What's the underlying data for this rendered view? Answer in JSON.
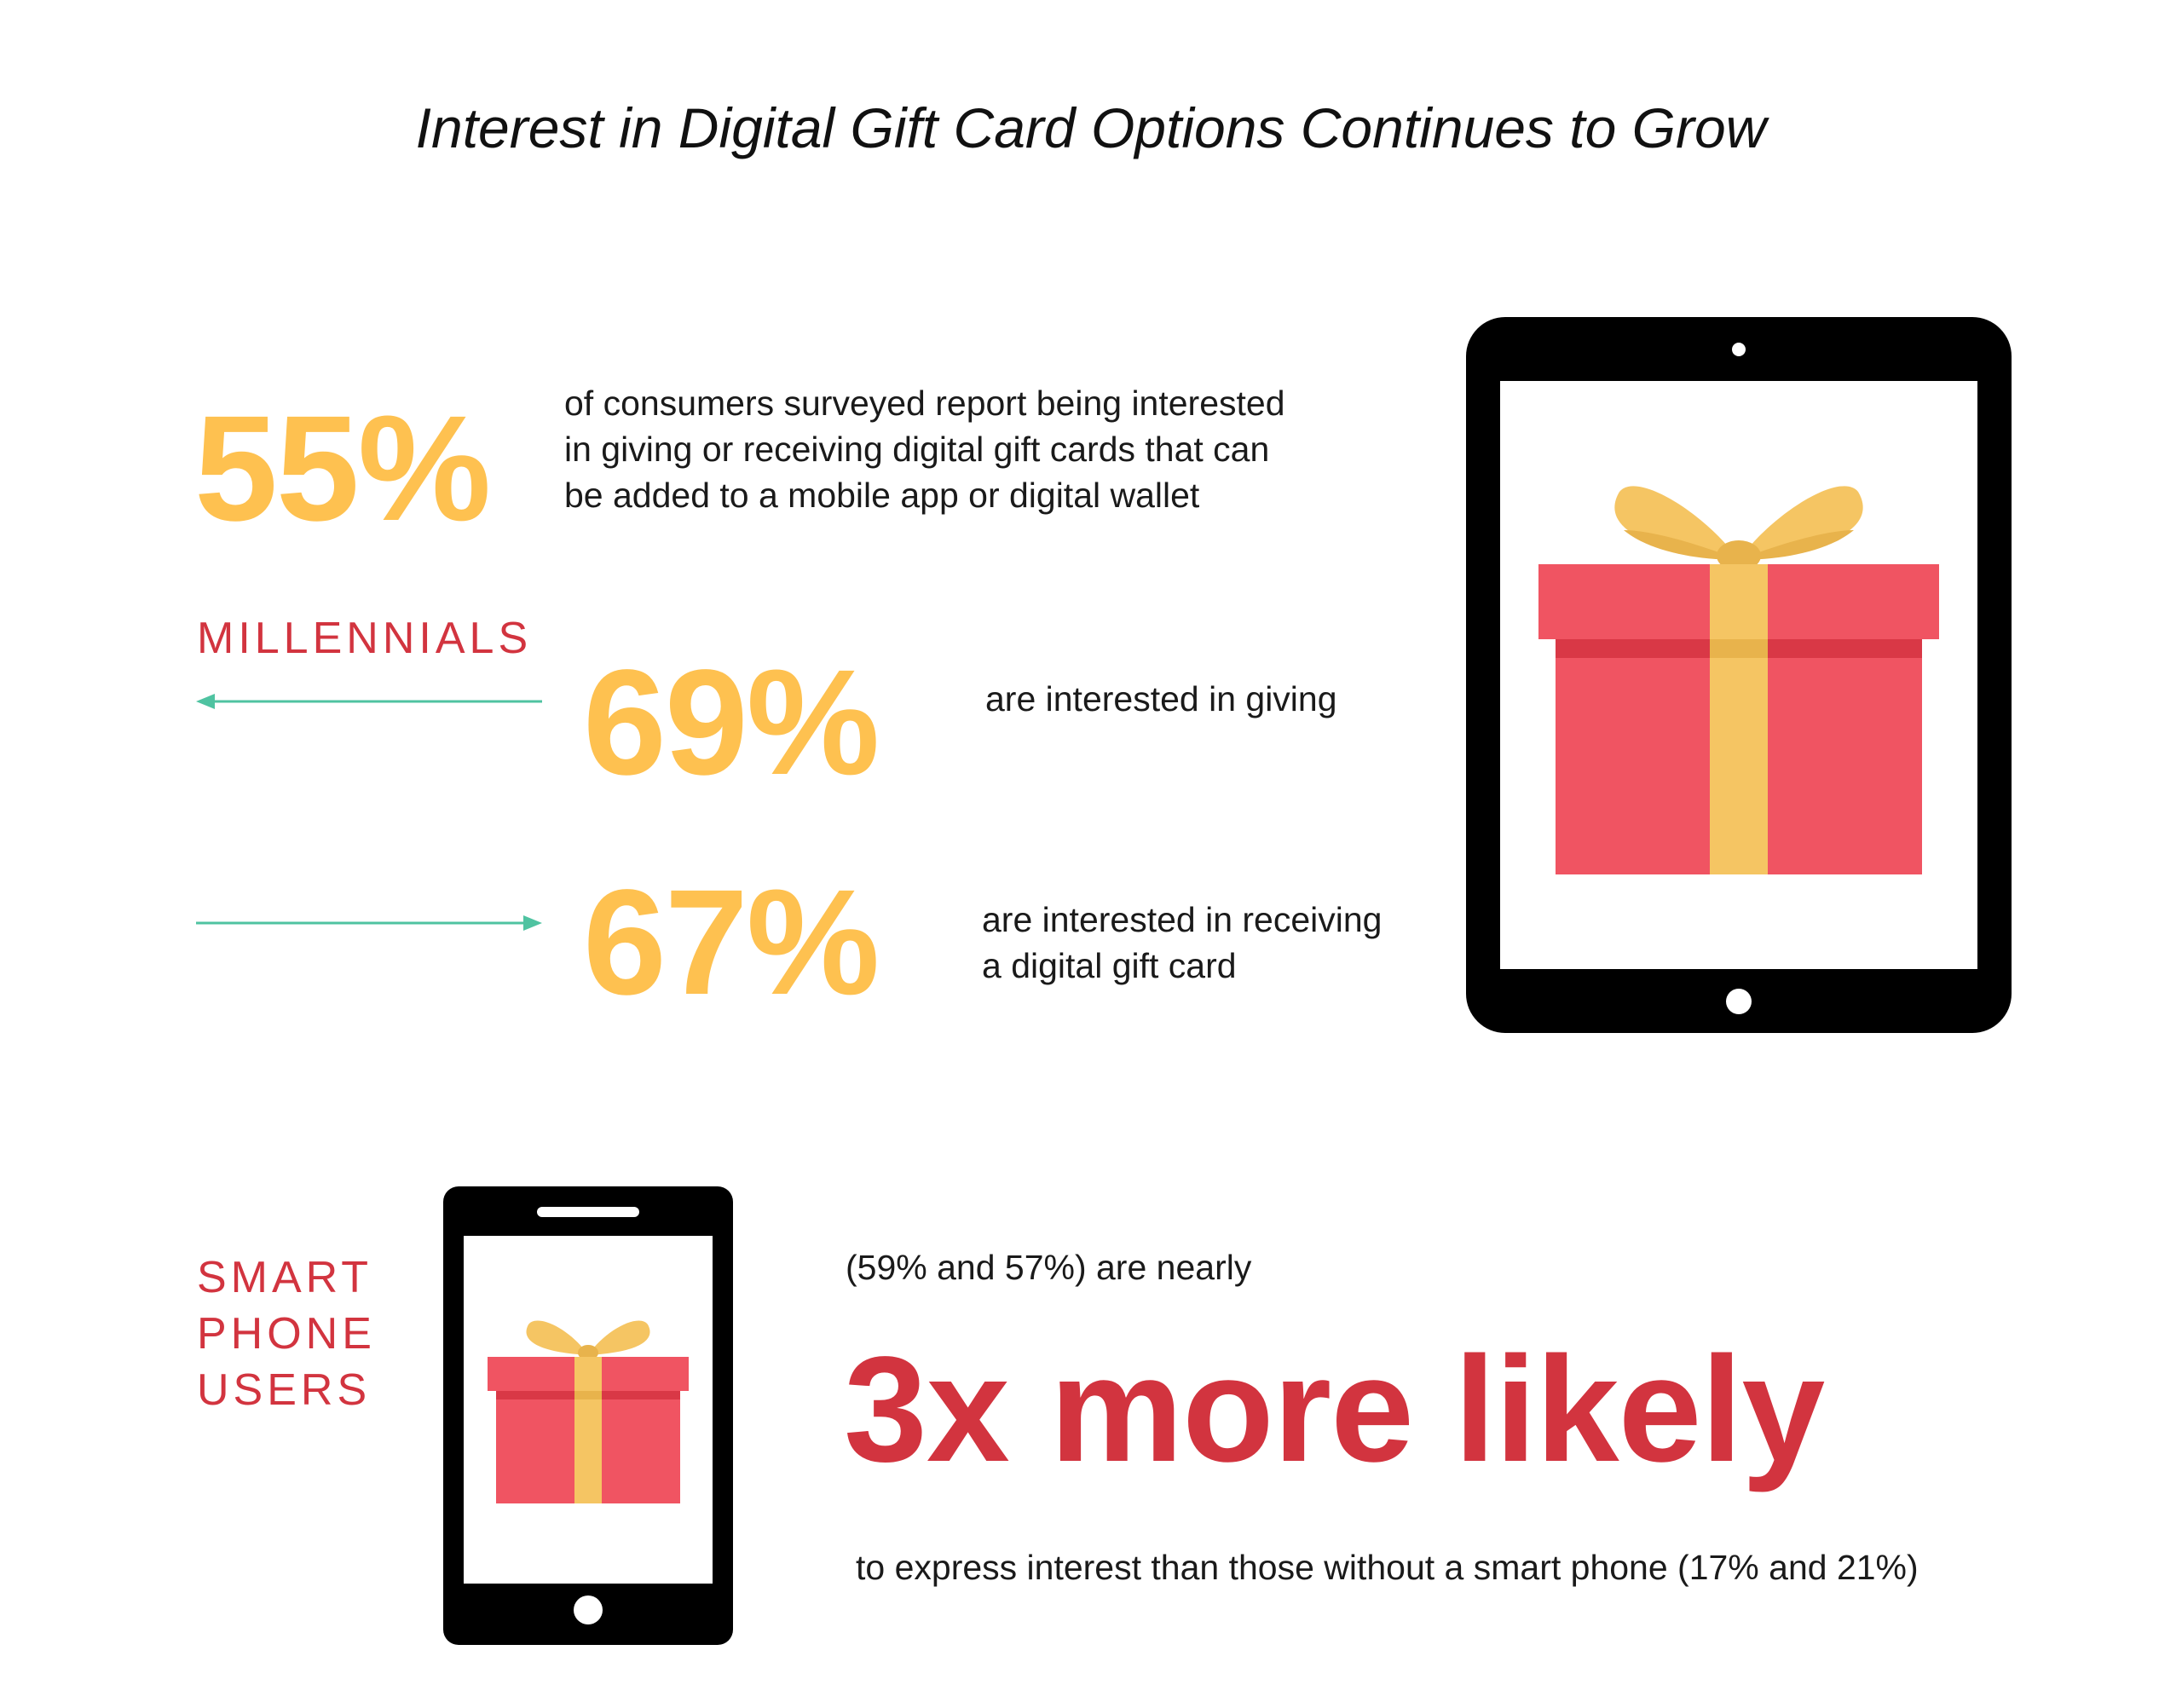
{
  "title": "Interest in Digital Gift Card Options Continues to Grow",
  "colors": {
    "stat": "#fec150",
    "accent_red": "#d2343f",
    "arrow": "#4fc3a1",
    "device": "#000000",
    "gift_red": "#f05462",
    "gift_red_dark": "#d93846",
    "ribbon": "#f5c563",
    "ribbon_dark": "#e8b34c"
  },
  "overall": {
    "value": "55%",
    "lines": [
      "of consumers surveyed report being interested",
      "in giving or receiving digital gift cards that can",
      "be added to a mobile app or digital wallet"
    ]
  },
  "millennials": {
    "label": "MILLENNIALS",
    "giving": {
      "value": "69%",
      "arrow_direction": "left",
      "lines": [
        "are interested in giving"
      ]
    },
    "receiving": {
      "value": "67%",
      "arrow_direction": "right",
      "lines": [
        "are interested in receiving",
        "a digital gift card"
      ]
    }
  },
  "smartphone": {
    "label_lines": [
      "SMART",
      "PHONE",
      "USERS"
    ],
    "intro": "(59% and 57%) are nearly",
    "headline": "3x more likely",
    "outro": "to express interest than those without a smart phone (17% and 21%)"
  },
  "icons": [
    "tablet-gift-icon",
    "smartphone-gift-icon",
    "left-arrow-icon",
    "right-arrow-icon"
  ]
}
